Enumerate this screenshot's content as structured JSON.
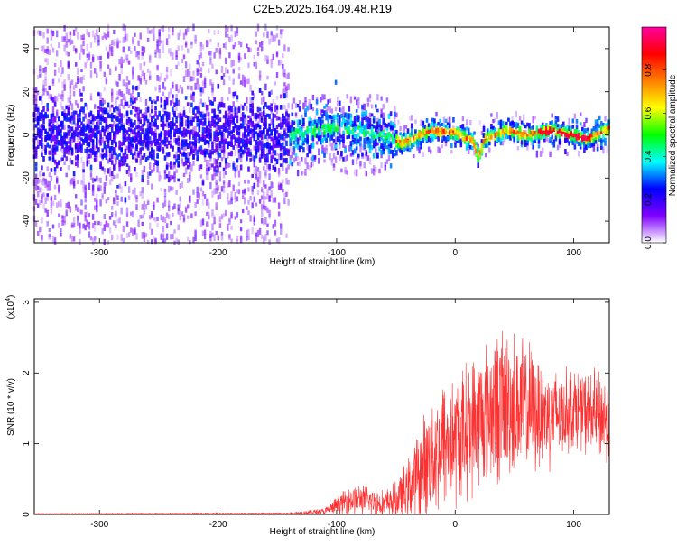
{
  "title": "C2E5.2025.164.09.48.R19",
  "chart_data": [
    {
      "type": "heatmap",
      "xlabel": "Height of straight line (km)",
      "ylabel": "Frequency (Hz)",
      "xlim": [
        -355,
        130
      ],
      "ylim": [
        -50,
        50
      ],
      "xticks": [
        -300,
        -200,
        -100,
        0,
        100
      ],
      "yticks": [
        -40,
        -20,
        0,
        20,
        40
      ],
      "colorbar": {
        "label": "Normalized spectral amplitude",
        "range": [
          0,
          1
        ],
        "ticks": [
          0.0,
          0.2,
          0.4,
          0.6,
          0.8
        ],
        "tick_labels": [
          "0.0",
          "0.2",
          "0.4",
          "0.6",
          "0.8"
        ],
        "colormap": [
          "#ffffff",
          "#7f00ff",
          "#0000ff",
          "#00ffff",
          "#00ff00",
          "#ffff00",
          "#ff8000",
          "#ff0000",
          "#ff00a0"
        ]
      },
      "ridge": {
        "description_points_x": [
          -355,
          -140,
          -100,
          -60,
          -45,
          -20,
          0,
          15,
          20,
          25,
          45,
          60,
          80,
          100,
          110,
          120,
          130
        ],
        "description_points_y": [
          0,
          0,
          3,
          0,
          -4,
          2,
          1,
          -3,
          -10,
          -2,
          2,
          0,
          2,
          0,
          -2,
          0,
          3
        ]
      }
    },
    {
      "type": "line",
      "xlabel": "Height of straight line (km)",
      "ylabel": "SNR (10 * v/v)",
      "yscale_label": "(x10",
      "yscale_exp": "4",
      "xlim": [
        -355,
        130
      ],
      "ylim": [
        0,
        3.05
      ],
      "xticks": [
        -300,
        -200,
        -100,
        0,
        100
      ],
      "yticks": [
        0,
        1,
        2,
        3
      ],
      "series": [
        {
          "color": "#ff3030",
          "envelope_x": [
            -355,
            -140,
            -110,
            -100,
            -90,
            -80,
            -70,
            -60,
            -50,
            -40,
            -30,
            -20,
            -10,
            0,
            10,
            20,
            30,
            40,
            50,
            60,
            70,
            80,
            90,
            100,
            110,
            120,
            130
          ],
          "envelope_mean": [
            0.01,
            0.015,
            0.04,
            0.12,
            0.2,
            0.22,
            0.18,
            0.15,
            0.2,
            0.35,
            0.6,
            0.85,
            1.0,
            1.05,
            1.2,
            1.35,
            1.5,
            1.55,
            1.55,
            1.5,
            1.45,
            1.4,
            1.45,
            1.5,
            1.45,
            1.4,
            1.35
          ],
          "envelope_spread": [
            0.005,
            0.01,
            0.05,
            0.12,
            0.2,
            0.2,
            0.2,
            0.18,
            0.25,
            0.4,
            0.6,
            0.8,
            0.9,
            0.9,
            0.9,
            0.95,
            1.0,
            1.05,
            1.0,
            0.9,
            0.8,
            0.7,
            0.6,
            0.55,
            0.55,
            0.6,
            0.6
          ]
        }
      ]
    }
  ]
}
